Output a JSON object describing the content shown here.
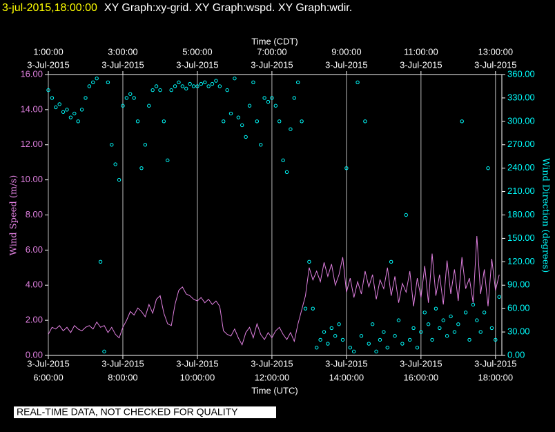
{
  "chart_data": {
    "type": "line",
    "title_date": "3-jul-2015,18:00:00",
    "title": "XY Graph:xy-grid.  XY Graph:wspd.  XY Graph:wdir.",
    "footer_note": "REAL-TIME DATA, NOT CHECKED FOR QUALITY",
    "xlabel": "Time (UTC)",
    "x2label": "Time (CDT)",
    "ylabel": "Wind Speed (m/s)",
    "y2label": "Wind Direction (degrees)",
    "grid": "x",
    "xlim": [
      6,
      18.17
    ],
    "xticks": [
      {
        "value": 6,
        "label": [
          "3-Jul-2015",
          "6:00:00"
        ]
      },
      {
        "value": 8,
        "label": [
          "3-Jul-2015",
          "8:00:00"
        ]
      },
      {
        "value": 10,
        "label": [
          "3-Jul-2015",
          "10:00:00"
        ]
      },
      {
        "value": 12,
        "label": [
          "3-Jul-2015",
          "12:00:00"
        ]
      },
      {
        "value": 14,
        "label": [
          "3-Jul-2015",
          "14:00:00"
        ]
      },
      {
        "value": 16,
        "label": [
          "3-Jul-2015",
          "16:00:00"
        ]
      },
      {
        "value": 18,
        "label": [
          "3-Jul-2015",
          "18:00:00"
        ]
      }
    ],
    "x2ticks": [
      {
        "value": 6,
        "label": [
          "1:00:00",
          "3-Jul-2015"
        ]
      },
      {
        "value": 8,
        "label": [
          "3:00:00",
          "3-Jul-2015"
        ]
      },
      {
        "value": 10,
        "label": [
          "5:00:00",
          "3-Jul-2015"
        ]
      },
      {
        "value": 12,
        "label": [
          "7:00:00",
          "3-Jul-2015"
        ]
      },
      {
        "value": 14,
        "label": [
          "9:00:00",
          "3-Jul-2015"
        ]
      },
      {
        "value": 16,
        "label": [
          "11:00:00",
          "3-Jul-2015"
        ]
      },
      {
        "value": 18,
        "label": [
          "13:00:00",
          "3-Jul-2015"
        ]
      }
    ],
    "ylim": [
      0,
      16
    ],
    "yticks": [
      {
        "value": 0,
        "label": "0.00"
      },
      {
        "value": 2,
        "label": "2.00"
      },
      {
        "value": 4,
        "label": "4.00"
      },
      {
        "value": 6,
        "label": "6.00"
      },
      {
        "value": 8,
        "label": "8.00"
      },
      {
        "value": 10,
        "label": "10.00"
      },
      {
        "value": 12,
        "label": "12.00"
      },
      {
        "value": 14,
        "label": "14.00"
      },
      {
        "value": 16,
        "label": "16.00"
      }
    ],
    "y2lim": [
      0,
      360
    ],
    "y2ticks": [
      {
        "value": 0,
        "label": "0.00"
      },
      {
        "value": 30,
        "label": "30.00"
      },
      {
        "value": 60,
        "label": "60.00"
      },
      {
        "value": 90,
        "label": "90.00"
      },
      {
        "value": 120,
        "label": "120.00"
      },
      {
        "value": 150,
        "label": "150.00"
      },
      {
        "value": 180,
        "label": "180.00"
      },
      {
        "value": 210,
        "label": "210.00"
      },
      {
        "value": 240,
        "label": "240.00"
      },
      {
        "value": 270,
        "label": "270.00"
      },
      {
        "value": 300,
        "label": "300.00"
      },
      {
        "value": 330,
        "label": "330.00"
      },
      {
        "value": 360,
        "label": "360.00"
      }
    ],
    "x": [
      6,
      6.1,
      6.2,
      6.3,
      6.4,
      6.5,
      6.6,
      6.7,
      6.8,
      6.9,
      7,
      7.1,
      7.2,
      7.3,
      7.4,
      7.5,
      7.6,
      7.7,
      7.8,
      7.9,
      8,
      8.1,
      8.2,
      8.3,
      8.4,
      8.5,
      8.6,
      8.7,
      8.8,
      8.9,
      9,
      9.1,
      9.2,
      9.3,
      9.4,
      9.5,
      9.6,
      9.7,
      9.8,
      9.9,
      10,
      10.1,
      10.2,
      10.3,
      10.4,
      10.5,
      10.6,
      10.7,
      10.8,
      10.9,
      11,
      11.1,
      11.2,
      11.3,
      11.4,
      11.5,
      11.6,
      11.7,
      11.8,
      11.9,
      12,
      12.1,
      12.2,
      12.3,
      12.4,
      12.5,
      12.6,
      12.7,
      12.8,
      12.9,
      13,
      13.1,
      13.2,
      13.3,
      13.4,
      13.5,
      13.6,
      13.7,
      13.8,
      13.9,
      14,
      14.1,
      14.2,
      14.3,
      14.4,
      14.5,
      14.6,
      14.7,
      14.8,
      14.9,
      15,
      15.1,
      15.2,
      15.3,
      15.4,
      15.5,
      15.6,
      15.7,
      15.8,
      15.9,
      16,
      16.1,
      16.2,
      16.3,
      16.4,
      16.5,
      16.6,
      16.7,
      16.8,
      16.9,
      17,
      17.1,
      17.2,
      17.3,
      17.4,
      17.5,
      17.6,
      17.7,
      17.8,
      17.9,
      18,
      18.1
    ],
    "series": [
      {
        "type": "line",
        "color": "#e080e0",
        "axis": "y",
        "values": [
          1.2,
          1.6,
          1.5,
          1.7,
          1.4,
          1.6,
          1.3,
          1.7,
          1.5,
          1.4,
          1.6,
          1.7,
          1.5,
          1.9,
          1.6,
          1.7,
          1.3,
          1.6,
          1.2,
          1.0,
          1.6,
          2.0,
          2.5,
          2.3,
          2.7,
          2.5,
          2.2,
          2.9,
          2.4,
          3.2,
          3.4,
          2.4,
          1.8,
          1.7,
          2.9,
          3.7,
          3.9,
          3.5,
          3.4,
          3.2,
          3.1,
          3.3,
          3.0,
          3.2,
          2.9,
          3.1,
          2.8,
          1.4,
          1.2,
          1.1,
          1.5,
          1.0,
          0.6,
          1.3,
          1.6,
          1.0,
          1.8,
          1.2,
          0.9,
          1.3,
          1.0,
          1.4,
          1.6,
          1.2,
          0.9,
          1.3,
          0.8,
          1.8,
          2.6,
          3.4,
          5.0,
          4.3,
          4.8,
          4.2,
          5.3,
          4.5,
          5.2,
          4.0,
          4.6,
          5.6,
          3.6,
          4.4,
          3.3,
          4.2,
          3.5,
          4.8,
          3.9,
          4.6,
          3.2,
          4.3,
          3.8,
          5.0,
          3.4,
          4.5,
          3.0,
          4.1,
          3.6,
          4.8,
          2.8,
          4.4,
          3.3,
          5.1,
          3.0,
          5.8,
          3.4,
          4.6,
          2.9,
          5.4,
          3.5,
          4.9,
          3.1,
          5.6,
          3.8,
          4.4,
          3.0,
          6.8,
          3.5,
          4.9,
          2.8,
          5.5,
          3.7,
          4.6
        ]
      },
      {
        "type": "scatter",
        "color": "#00ffff",
        "axis": "y2",
        "values": [
          340,
          330,
          318,
          322,
          312,
          315,
          305,
          310,
          300,
          315,
          330,
          345,
          350,
          355,
          120,
          5,
          350,
          270,
          245,
          225,
          320,
          330,
          335,
          330,
          300,
          240,
          270,
          320,
          340,
          345,
          340,
          300,
          250,
          340,
          345,
          350,
          345,
          342,
          348,
          345,
          345,
          348,
          350,
          345,
          348,
          352,
          345,
          300,
          340,
          310,
          355,
          305,
          295,
          280,
          320,
          350,
          300,
          270,
          330,
          325,
          330,
          320,
          300,
          250,
          235,
          290,
          330,
          350,
          300,
          60,
          120,
          60,
          10,
          20,
          30,
          15,
          35,
          25,
          40,
          20,
          240,
          10,
          5,
          350,
          25,
          300,
          15,
          40,
          5,
          20,
          30,
          10,
          120,
          25,
          45,
          15,
          180,
          20,
          35,
          10,
          30,
          55,
          40,
          20,
          60,
          35,
          45,
          25,
          50,
          30,
          40,
          300,
          55,
          20,
          65,
          45,
          30,
          55,
          240,
          35,
          20,
          75
        ]
      }
    ]
  }
}
